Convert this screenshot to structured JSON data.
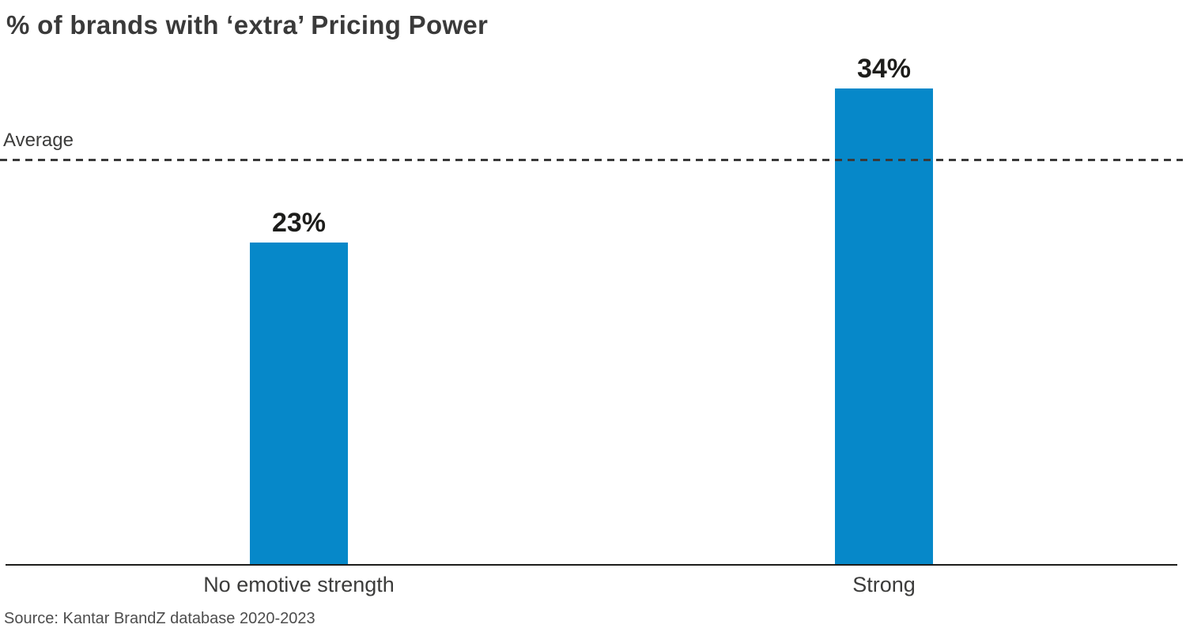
{
  "chart_data": {
    "type": "bar",
    "title": "% of brands with ‘extra’ Pricing Power",
    "categories": [
      "No emotive strength",
      "Strong"
    ],
    "values": [
      23,
      34
    ],
    "value_labels": [
      "23%",
      "34%"
    ],
    "series": [
      {
        "name": "% of brands with extra Pricing Power",
        "values": [
          23,
          34
        ]
      }
    ],
    "average_line": {
      "label": "Average",
      "value": 29,
      "style": "dashed"
    },
    "xlabel": "",
    "ylabel": "",
    "ylim": [
      0,
      40
    ],
    "grid": false,
    "legend": "none",
    "bar_color": "#0688c9",
    "axis_color": "#1d1d1b",
    "dash_color": "#3a3a3a",
    "source": "Source: Kantar BrandZ database 2020-2023"
  }
}
